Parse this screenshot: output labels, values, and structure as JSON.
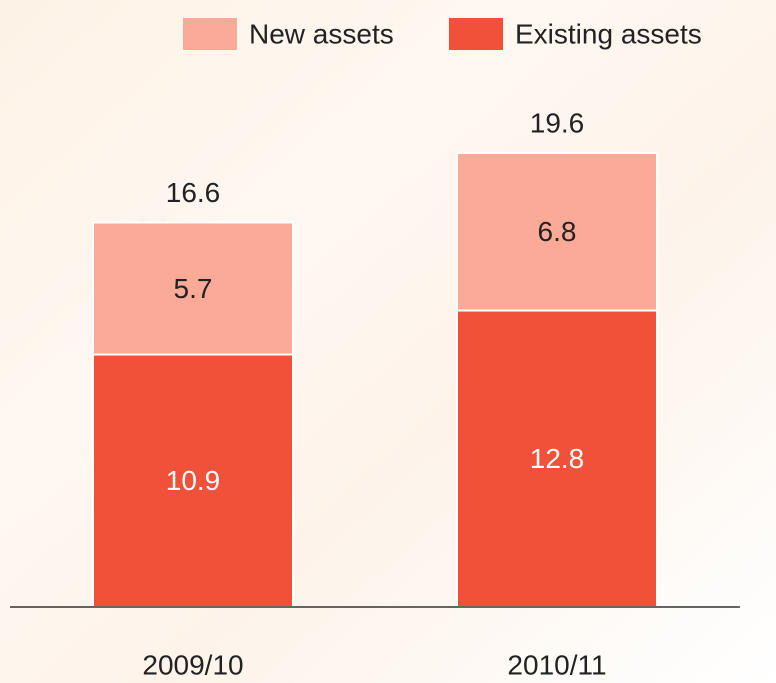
{
  "chart_data": {
    "type": "stacked_bar",
    "categories": [
      "2009/10",
      "2010/11"
    ],
    "series": [
      {
        "name": "Existing assets",
        "color": "#f05138",
        "values": [
          10.9,
          12.8
        ]
      },
      {
        "name": "New assets",
        "color": "#fcaa98",
        "values": [
          5.7,
          6.8
        ]
      }
    ],
    "totals": [
      16.6,
      19.6
    ],
    "legend": "top-right"
  }
}
